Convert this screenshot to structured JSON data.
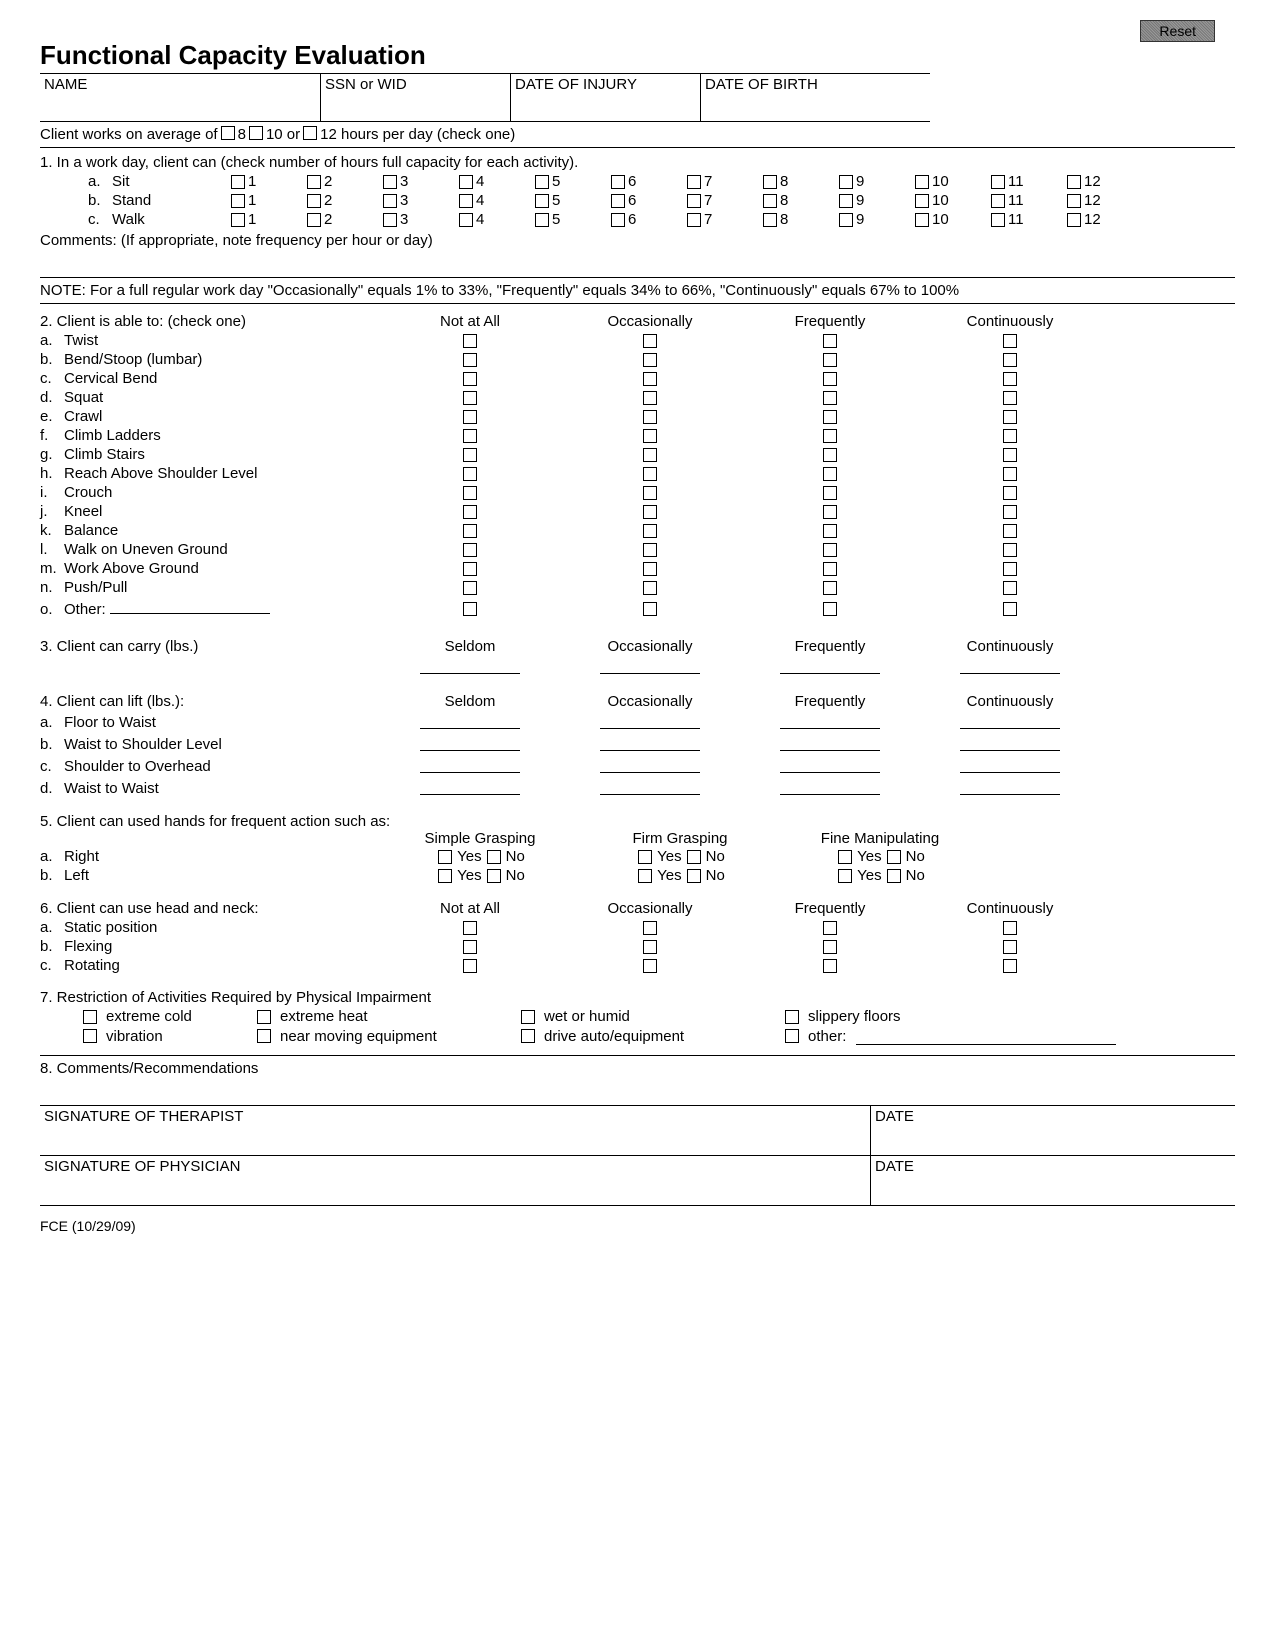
{
  "reset_label": "Reset",
  "title": "Functional Capacity Evaluation",
  "header_fields": {
    "name": "NAME",
    "ssn": "SSN or WID",
    "doi": "DATE OF INJURY",
    "dob": "DATE OF BIRTH"
  },
  "work_hours": {
    "prefix": "Client works on average of",
    "h8": "8",
    "h10": "10 or",
    "h12": "12 hours per day (check one)"
  },
  "q1": {
    "text": "1.  In a work day, client can (check number of hours full capacity for each activity).",
    "rows": [
      {
        "letter": "a.",
        "label": "Sit"
      },
      {
        "letter": "b.",
        "label": "Stand"
      },
      {
        "letter": "c.",
        "label": "Walk"
      }
    ],
    "hours": [
      "1",
      "2",
      "3",
      "4",
      "5",
      "6",
      "7",
      "8",
      "9",
      "10",
      "11",
      "12"
    ],
    "comments": "Comments:  (If appropriate, note frequency per hour or day)"
  },
  "note": "NOTE:  For a full regular work day \"Occasionally\" equals 1% to 33%, \"Frequently\" equals 34% to 66%, \"Continuously\" equals 67% to 100%",
  "freq_headers": {
    "na": "Not at All",
    "occ": "Occasionally",
    "freq": "Frequently",
    "cont": "Continuously",
    "seldom": "Seldom"
  },
  "q2": {
    "text": "2.  Client is able to: (check one)",
    "items": [
      {
        "l": "a.",
        "t": "Twist"
      },
      {
        "l": "b.",
        "t": "Bend/Stoop (lumbar)"
      },
      {
        "l": "c.",
        "t": "Cervical Bend"
      },
      {
        "l": "d.",
        "t": "Squat"
      },
      {
        "l": "e.",
        "t": "Crawl"
      },
      {
        "l": "f.",
        "t": "Climb Ladders"
      },
      {
        "l": "g.",
        "t": "Climb Stairs"
      },
      {
        "l": "h.",
        "t": "Reach Above Shoulder Level"
      },
      {
        "l": "i.",
        "t": "Crouch"
      },
      {
        "l": "j.",
        "t": "Kneel"
      },
      {
        "l": "k.",
        "t": "Balance"
      },
      {
        "l": "l.",
        "t": "Walk on Uneven Ground"
      },
      {
        "l": "m.",
        "t": "Work Above Ground"
      },
      {
        "l": "n.",
        "t": "Push/Pull"
      },
      {
        "l": "o.",
        "t": "Other:"
      }
    ]
  },
  "q3": {
    "text": "3.  Client can carry (lbs.)"
  },
  "q4": {
    "text": "4.  Client can lift (lbs.):",
    "items": [
      {
        "l": "a.",
        "t": "Floor to Waist"
      },
      {
        "l": "b.",
        "t": "Waist to Shoulder Level"
      },
      {
        "l": "c.",
        "t": "Shoulder to Overhead"
      },
      {
        "l": "d.",
        "t": "Waist to Waist"
      }
    ]
  },
  "q5": {
    "text": "5.  Client can used hands for frequent action such as:",
    "cols": {
      "sg": "Simple Grasping",
      "fg": "Firm Grasping",
      "fm": "Fine Manipulating"
    },
    "rows": [
      {
        "l": "a.",
        "t": "Right"
      },
      {
        "l": "b.",
        "t": "Left"
      }
    ],
    "yes": "Yes",
    "no": "No"
  },
  "q6": {
    "text": "6.  Client can use head and neck:",
    "items": [
      {
        "l": "a.",
        "t": "Static position"
      },
      {
        "l": "b.",
        "t": "Flexing"
      },
      {
        "l": "c.",
        "t": "Rotating"
      }
    ]
  },
  "q7": {
    "text": "7.  Restriction of Activities Required by Physical Impairment",
    "row1": [
      "extreme cold",
      "extreme heat",
      "wet or humid",
      "slippery floors"
    ],
    "row2": [
      "vibration",
      "near moving equipment",
      "drive auto/equipment"
    ],
    "other": "other:"
  },
  "q8": {
    "text": "8.   Comments/Recommendations"
  },
  "sig": {
    "therapist": "SIGNATURE OF THERAPIST",
    "physician": "SIGNATURE OF PHYSICIAN",
    "date": "DATE"
  },
  "footer": "FCE (10/29/09)"
}
